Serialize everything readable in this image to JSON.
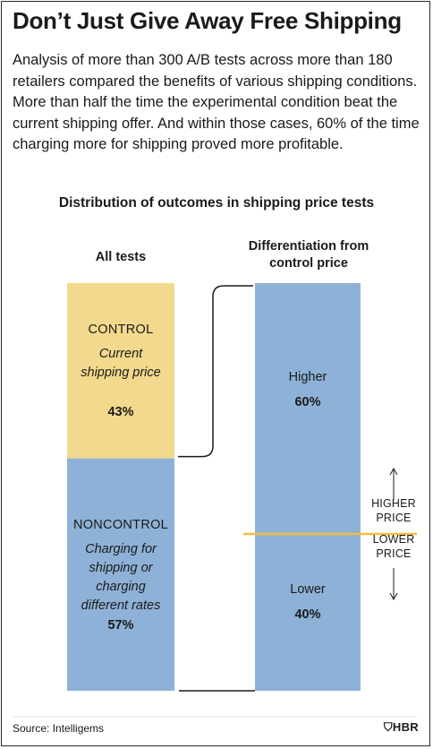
{
  "title": "Don’t Just Give Away Free Shipping",
  "intro": "Analysis of more than 300 A/B tests across more than 180 retailers compared the benefits of various shipping conditions. More than half the time the experimental condition beat the current shipping offer. And within those cases, 60% of the time charging more for shipping proved more profitable.",
  "source": "Source: Intelligems",
  "logo": "HBR",
  "colors": {
    "control": "#f2d98d",
    "noncontrol": "#8eb2d7",
    "divider": "#f2be3e",
    "ink": "#1a1a1a"
  },
  "chart_data": [
    {
      "type": "bar",
      "title": "Distribution of outcomes in shipping price tests",
      "column_label": "All tests",
      "stacked": true,
      "segments": [
        {
          "name": "CONTROL",
          "description": "Current shipping price",
          "value": 43,
          "label": "43%"
        },
        {
          "name": "NONCONTROL",
          "description": "Charging for shipping or charging different rates",
          "value": 57,
          "label": "57%"
        }
      ]
    },
    {
      "type": "bar",
      "column_label": "Differentiation from control price",
      "stacked": true,
      "segments": [
        {
          "name": "Higher",
          "value": 60,
          "label": "60%"
        },
        {
          "name": "Lower",
          "value": 40,
          "label": "40%"
        }
      ],
      "annotations": {
        "up": "HIGHER PRICE",
        "down": "LOWER PRICE"
      }
    }
  ]
}
